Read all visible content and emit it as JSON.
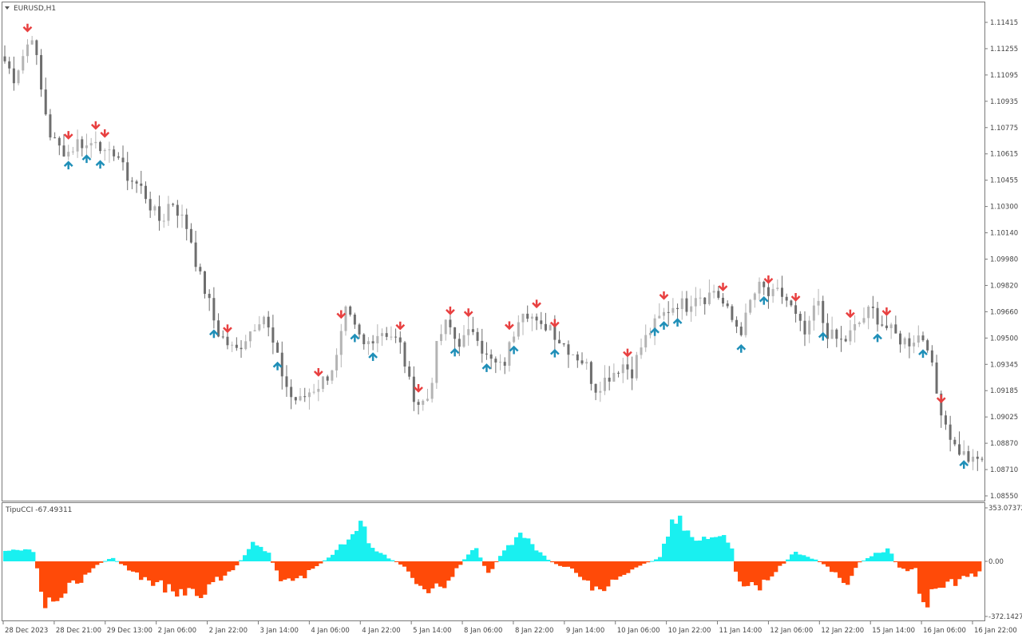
{
  "colors": {
    "background": "#ffffff",
    "frame": "#7a7a7a",
    "axis_text": "#444444",
    "bull_candle": "#b4b4b4",
    "bear_candle": "#6e6e6e",
    "sell_arrow": "#e84040",
    "buy_arrow": "#1f8fb8",
    "cci_positive": "#19f0f0",
    "cci_negative": "#ff4a08"
  },
  "price_panel": {
    "title": "EURUSD,H1",
    "title_icon": "triangle-down-icon"
  },
  "cci_panel": {
    "title": "TipuCCI -67.49311",
    "axis_labels": [
      "353.07372",
      "0.00",
      "-372.1427"
    ]
  },
  "chart_data": [
    {
      "type": "candlestick",
      "title": "EURUSD,H1",
      "y_ticks": [
        "1.11415",
        "1.11255",
        "1.11095",
        "1.10935",
        "1.10775",
        "1.10615",
        "1.10455",
        "1.10300",
        "1.10140",
        "1.09980",
        "1.09820",
        "1.09660",
        "1.09500",
        "1.09345",
        "1.09185",
        "1.09025",
        "1.08870",
        "1.08710",
        "1.08550"
      ],
      "ylim": [
        1.0851,
        1.1153
      ],
      "x_labels": [
        "28 Dec 2023",
        "28 Dec 21:00",
        "29 Dec 13:00",
        "2 Jan 06:00",
        "2 Jan 22:00",
        "3 Jan 14:00",
        "4 Jan 06:00",
        "4 Jan 22:00",
        "5 Jan 14:00",
        "8 Jan 06:00",
        "8 Jan 22:00",
        "9 Jan 14:00",
        "10 Jan 06:00",
        "10 Jan 22:00",
        "11 Jan 14:00",
        "12 Jan 06:00",
        "12 Jan 22:00",
        "15 Jan 14:00",
        "16 Jan 06:00",
        "16 Jan 22:00"
      ],
      "close_path": [
        1.1118,
        1.1108,
        1.1122,
        1.1135,
        1.1098,
        1.1072,
        1.1065,
        1.1063,
        1.107,
        1.1066,
        1.1073,
        1.1058,
        1.1065,
        1.105,
        1.1045,
        1.104,
        1.1028,
        1.102,
        1.1035,
        1.1025,
        1.1015,
        1.099,
        1.0975,
        1.0955,
        1.0948,
        1.0942,
        1.095,
        1.0958,
        1.0966,
        1.0948,
        1.093,
        1.0915,
        1.0912,
        1.0918,
        1.0922,
        1.0928,
        1.0938,
        1.0966,
        1.0955,
        1.0945,
        1.0952,
        1.0955,
        1.0952,
        1.0945,
        1.092,
        1.091,
        1.0915,
        1.095,
        1.096,
        1.0948,
        1.095,
        1.0958,
        1.094,
        1.0935,
        1.0932,
        1.095,
        1.097,
        1.0965,
        1.0955,
        1.096,
        1.095,
        1.0945,
        1.094,
        1.0935,
        1.092,
        1.0925,
        1.093,
        1.0935,
        1.093,
        1.0945,
        1.0955,
        1.0962,
        1.0968,
        1.0972,
        1.097,
        1.0978,
        1.0975,
        1.098,
        1.097,
        1.096,
        1.0955,
        1.0975,
        1.0982,
        1.0975,
        1.0978,
        1.0972,
        1.096,
        1.095,
        1.0975,
        1.0955,
        1.095,
        1.0948,
        1.0955,
        1.0962,
        1.0968,
        1.096,
        1.0955,
        1.095,
        1.0948,
        1.0952,
        1.095,
        1.0918,
        1.09,
        1.0885,
        1.088,
        1.0875,
        1.0878
      ],
      "sell_arrow_count": 22,
      "buy_arrow_count": 20
    },
    {
      "type": "bar",
      "title": "TipuCCI -67.49311",
      "ylim": [
        -372.1427,
        353.07372
      ],
      "zero_line": 0.0,
      "last_value": -67.49311
    }
  ]
}
